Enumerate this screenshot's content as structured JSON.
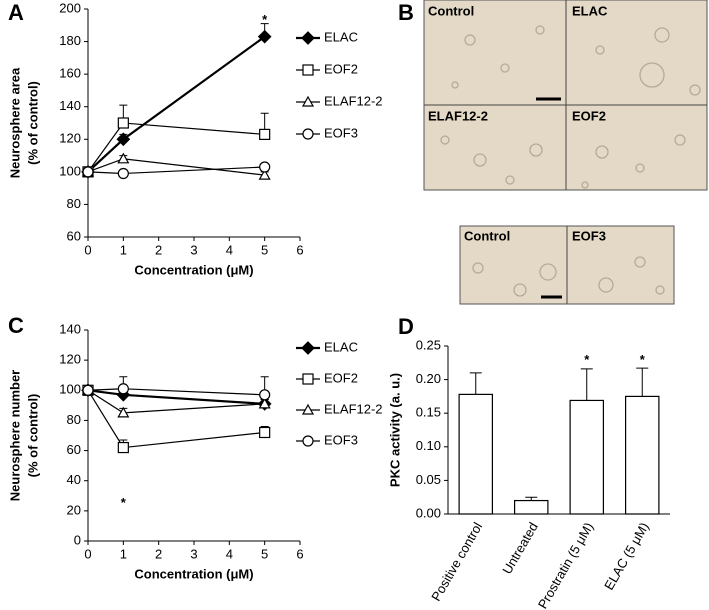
{
  "chart_data": [
    {
      "type": "line",
      "panel_label": "A",
      "ylabel": [
        "Neurosphere area",
        "(% of control)"
      ],
      "xlabel": "Concentration (μM)",
      "x": [
        0,
        1,
        5
      ],
      "xlim": [
        0,
        6
      ],
      "xticks": [
        0,
        1,
        2,
        3,
        4,
        5,
        6
      ],
      "ylim": [
        60,
        200
      ],
      "yticks": [
        60,
        80,
        100,
        120,
        140,
        160,
        180,
        200
      ],
      "series": [
        {
          "name": "ELAC",
          "color": "#000000",
          "marker": "diamond",
          "values": [
            100,
            120,
            183
          ],
          "errors": [
            0,
            3,
            8
          ]
        },
        {
          "name": "EOF2",
          "color": "#000000",
          "marker": "square",
          "values": [
            100,
            130,
            123
          ],
          "errors": [
            0,
            11,
            13
          ]
        },
        {
          "name": "ELAF12-2",
          "color": "#000000",
          "marker": "triangle",
          "values": [
            100,
            108,
            98
          ],
          "errors": [
            0,
            2,
            2
          ]
        },
        {
          "name": "EOF3",
          "color": "#000000",
          "marker": "circle",
          "values": [
            100,
            99,
            103
          ],
          "errors": [
            0,
            1,
            2
          ]
        }
      ],
      "annotations": [
        {
          "text": "*",
          "x": 5,
          "y": 196
        }
      ]
    },
    {
      "type": "line",
      "panel_label": "C",
      "ylabel": [
        "Neurosphere number",
        "(% of control)"
      ],
      "xlabel": "Concentration (μM)",
      "x": [
        0,
        1,
        5
      ],
      "xlim": [
        0,
        6
      ],
      "xticks": [
        0,
        1,
        2,
        3,
        4,
        5,
        6
      ],
      "ylim": [
        0,
        140
      ],
      "yticks": [
        0,
        20,
        40,
        60,
        80,
        100,
        120,
        140
      ],
      "series": [
        {
          "name": "ELAC",
          "color": "#000000",
          "marker": "diamond",
          "values": [
            100,
            97,
            91
          ],
          "errors": [
            0,
            3,
            3
          ]
        },
        {
          "name": "EOF2",
          "color": "#000000",
          "marker": "square",
          "values": [
            100,
            62,
            72
          ],
          "errors": [
            0,
            5,
            4
          ]
        },
        {
          "name": "ELAF12-2",
          "color": "#000000",
          "marker": "triangle",
          "values": [
            100,
            85,
            91
          ],
          "errors": [
            0,
            3,
            3
          ]
        },
        {
          "name": "EOF3",
          "color": "#000000",
          "marker": "circle",
          "values": [
            100,
            101,
            97
          ],
          "errors": [
            0,
            8,
            12
          ]
        }
      ],
      "annotations": [
        {
          "text": "*",
          "x": 1,
          "y": 28
        }
      ]
    },
    {
      "type": "bar",
      "panel_label": "D",
      "ylabel": "PKC activity (a. u.)",
      "categories": [
        "Positive control",
        "Untreated",
        "Prostratin (5 μM)",
        "ELAC (5 μM)"
      ],
      "values": [
        0.178,
        0.02,
        0.169,
        0.175
      ],
      "errors": [
        0.032,
        0.005,
        0.047,
        0.042
      ],
      "color": "#ffffff",
      "ylim": [
        0,
        0.25
      ],
      "yticks": [
        {
          "value": 0,
          "label": "0.00"
        },
        {
          "value": 0.05,
          "label": "0.05"
        },
        {
          "value": 0.1,
          "label": "0.10"
        },
        {
          "value": 0.15,
          "label": "0.15"
        },
        {
          "value": 0.2,
          "label": "0.20"
        },
        {
          "value": 0.25,
          "label": "0.25"
        }
      ],
      "annotations": [
        {
          "text": "*",
          "category": "Prostratin (5 μM)",
          "y": 0.236
        },
        {
          "text": "*",
          "category": "ELAC (5 μM)",
          "y": 0.236
        }
      ]
    }
  ],
  "panel_b": {
    "panel_label": "B",
    "images": [
      "Control",
      "ELAC",
      "ELAF12-2",
      "EOF2"
    ],
    "images2": [
      "Control",
      "EOF3"
    ]
  }
}
